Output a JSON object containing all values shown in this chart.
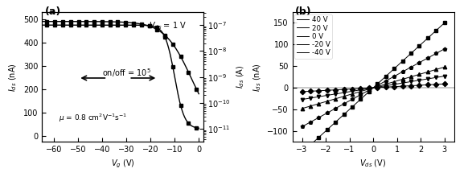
{
  "panel_a": {
    "label": "(a)",
    "xlabel": "$V_{g}$ (V)",
    "ylabel_left": "$I_{ds}$ (nA)",
    "ylabel_right": "$I_{ds}$ (A)",
    "xlim": [
      -65,
      2
    ],
    "ylim_left": [
      -25,
      530
    ],
    "xticks": [
      -60,
      -50,
      -40,
      -30,
      -20,
      -10,
      0
    ],
    "yticks_left": [
      0,
      100,
      200,
      300,
      400,
      500
    ],
    "ann_onoff": "on/off = $10^5$",
    "ann_mu": "$\\mu$ = 0.8 cm$^{2}$V$^{-1}$s$^{-1}$",
    "ann_vds": "$V_{ds}$ = 1 V",
    "tick_fontsize": 7.0,
    "ann_fontsize": 7.5
  },
  "panel_b": {
    "label": "(b)",
    "xlabel": "$V_{ds}$ (V)",
    "ylabel": "$I_{ds}$ (nA)",
    "xlim": [
      -3.4,
      3.4
    ],
    "ylim": [
      -125,
      175
    ],
    "xticks": [
      -3,
      -2,
      -1,
      0,
      1,
      2,
      3
    ],
    "yticks": [
      -100,
      -50,
      0,
      50,
      100,
      150
    ],
    "legend_labels": [
      "40 V",
      "20 V",
      "0 V",
      "-20 V",
      "-40 V"
    ],
    "slopes": [
      51,
      31,
      15,
      -5,
      -36
    ],
    "tick_fontsize": 7.0,
    "ann_fontsize": 7.5
  }
}
